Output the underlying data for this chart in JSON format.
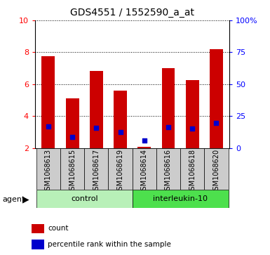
{
  "title": "GDS4551 / 1552590_a_at",
  "samples": [
    "GSM1068613",
    "GSM1068615",
    "GSM1068617",
    "GSM1068619",
    "GSM1068614",
    "GSM1068616",
    "GSM1068618",
    "GSM1068620"
  ],
  "red_values": [
    7.75,
    5.1,
    6.85,
    5.6,
    2.05,
    7.0,
    6.25,
    8.2
  ],
  "blue_values": [
    3.35,
    2.7,
    3.25,
    3.0,
    2.45,
    3.3,
    3.2,
    3.55
  ],
  "red_color": "#cc0000",
  "blue_color": "#0000cc",
  "ylim_left": [
    2,
    10
  ],
  "ylim_right": [
    0,
    100
  ],
  "yticks_left": [
    2,
    4,
    6,
    8,
    10
  ],
  "ytick_labels_left": [
    "2",
    "4",
    "6",
    "8",
    "10"
  ],
  "yticks_right": [
    0,
    25,
    50,
    75,
    100
  ],
  "ytick_labels_right": [
    "0",
    "25",
    "50",
    "75",
    "100%"
  ],
  "group_labels": [
    "control",
    "interleukin-10"
  ],
  "group_colors_light": "#b8f0b8",
  "group_colors_dark": "#4de04d",
  "agent_label": "agent",
  "legend_count": "count",
  "legend_percentile": "percentile rank within the sample",
  "bar_width": 0.55,
  "gray_bg": "#cccccc",
  "bar_bottom": 2.0,
  "white_bg": "#ffffff"
}
